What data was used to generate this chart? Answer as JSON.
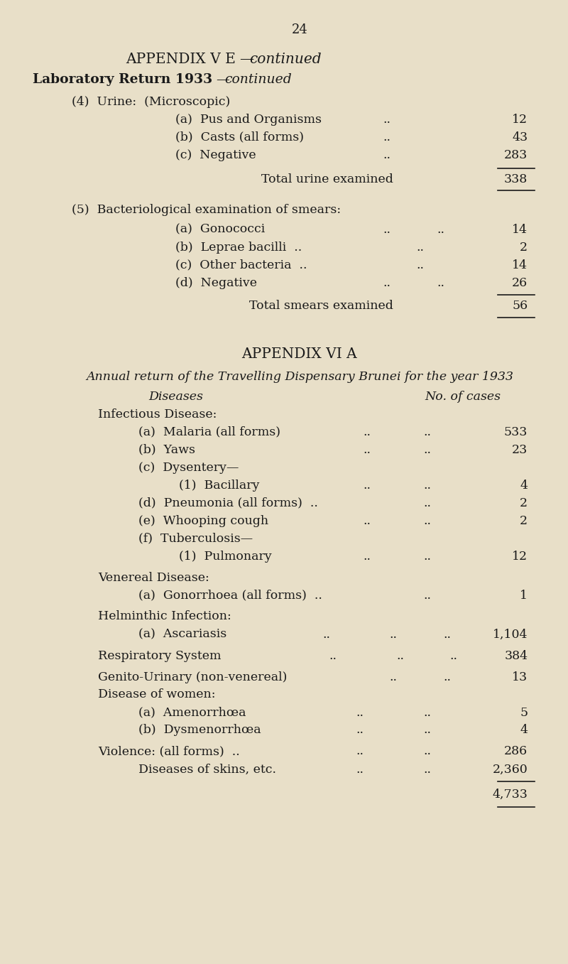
{
  "bg_color": "#e8dfc8",
  "text_color": "#1a1a1a",
  "page_number": "24",
  "title1": "APPENDIX V E—continued",
  "title2": "Laboratory Return 1933—continued",
  "title1_style": "mixed",
  "title2_style": "smallcaps_italic",
  "section4_header": "(4)  Urine:  (Microscopic)",
  "section4_items": [
    [
      "(a)  Pus and Organisms",
      "..",
      "12"
    ],
    [
      "(b)  Casts (all forms)",
      "..",
      "43"
    ],
    [
      "(c)  Negative",
      "..          ..",
      "283"
    ]
  ],
  "section4_total_label": "Total urine examined",
  "section4_total": "338",
  "section5_header": "(5)  Bacteriological examination of smears:",
  "section5_items": [
    [
      "(a)  Gonococci",
      "..          ..",
      "14"
    ],
    [
      "(b)  Leprae bacilli  ..",
      "..",
      "2"
    ],
    [
      "(c)  Other bacteria  ..",
      "..",
      "14"
    ],
    [
      "(d)  Negative",
      "..          ..",
      "26"
    ]
  ],
  "section5_total_label": "Total smears examined",
  "section5_total": "56",
  "appendix6_title": "APPENDIX VI A",
  "appendix6_subtitle": "Annual return of the Travelling Dispensary Brunei for the year 1933",
  "col_header_disease": "Diseases",
  "col_header_cases": "No. of cases",
  "appendix6_sections": [
    {
      "header": "Infectious Disease:",
      "items": [
        [
          "(a)  Malaria (all forms)",
          "..",
          "..",
          "533"
        ],
        [
          "(b)  Yaws",
          "..",
          "..",
          "23"
        ],
        [
          "(c)  Dysentery—",
          "",
          "",
          ""
        ],
        [
          "        (1)  Bacillary",
          "..",
          "..",
          "4"
        ],
        [
          "(d)  Pneumonia (all forms)  ..",
          "..",
          "",
          "2"
        ],
        [
          "(e)  Whooping cough",
          "..",
          "..",
          "2"
        ],
        [
          "(f)  Tuberculosis—",
          "",
          "",
          ""
        ],
        [
          "        (1)  Pulmonary",
          "..",
          "..",
          "12"
        ]
      ]
    },
    {
      "header": "Venereal Disease:",
      "items": [
        [
          "(a)  Gonorrhoea (all forms)  ..",
          "..",
          "",
          "1"
        ]
      ]
    },
    {
      "header": "Helminthic Infection:",
      "items": [
        [
          "(a)  Ascariasis",
          "..",
          "..",
          "1,104"
        ]
      ]
    },
    {
      "header": "Respiratory System",
      "items": [
        [
          "",
          "..",
          "..",
          "384"
        ]
      ]
    },
    {
      "header": "Genito-Urinary (non-venereal)",
      "items": [
        [
          "",
          "..",
          "..",
          "13"
        ]
      ]
    },
    {
      "header": "Disease of women:",
      "items": [
        [
          "(a)  Amenorrhœa",
          "..",
          "..",
          "5"
        ],
        [
          "(b)  Dysmenorrhœa",
          "..",
          "..",
          "4"
        ]
      ]
    },
    {
      "header": "Violence: (all forms)  ..",
      "items": [
        [
          "",
          "..",
          "..",
          "286"
        ]
      ]
    },
    {
      "header": "        Diseases of skins, etc.",
      "items": [
        [
          "",
          "..",
          "..",
          "2,360"
        ]
      ]
    }
  ],
  "grand_total": "4,733"
}
